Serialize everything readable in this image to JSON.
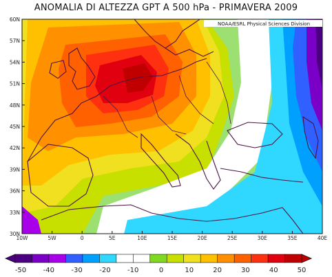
{
  "title": "ANOMALIA DI ALTEZZA GPT A 500 hPa - PRIMAVERA 2009",
  "credit": "NOAA/ESRL Physical Sciences Division",
  "map": {
    "lon_range": [
      -10,
      40
    ],
    "lat_range": [
      30,
      60
    ],
    "lon_ticks": [
      "10W",
      "5W",
      "0",
      "5E",
      "10E",
      "15E",
      "20E",
      "25E",
      "30E",
      "35E",
      "40E"
    ],
    "lat_ticks": [
      "30N",
      "33N",
      "36N",
      "39N",
      "42N",
      "45N",
      "48N",
      "51N",
      "54N",
      "57N",
      "60N"
    ]
  },
  "colorbar": {
    "labels": [
      "-50",
      "-40",
      "-30",
      "-20",
      "-10",
      "0",
      "10",
      "20",
      "30",
      "40",
      "50"
    ],
    "colors": [
      "#4b0082",
      "#7a00c8",
      "#a800e8",
      "#3060ff",
      "#00a0ff",
      "#30d8ff",
      "#ffffff",
      "#ffffff",
      "#80d820",
      "#c8e000",
      "#f0e020",
      "#ffc000",
      "#ff9000",
      "#ff6000",
      "#ff3010",
      "#e00010",
      "#c00000"
    ]
  }
}
